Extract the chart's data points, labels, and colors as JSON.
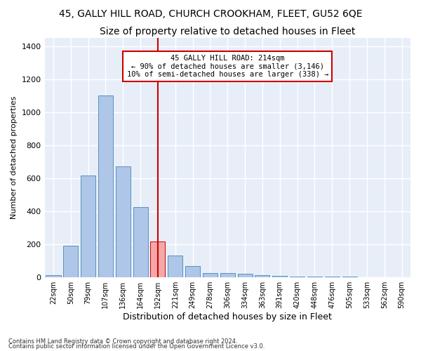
{
  "title1": "45, GALLY HILL ROAD, CHURCH CROOKHAM, FLEET, GU52 6QE",
  "title2": "Size of property relative to detached houses in Fleet",
  "xlabel": "Distribution of detached houses by size in Fleet",
  "ylabel": "Number of detached properties",
  "footnote1": "Contains HM Land Registry data © Crown copyright and database right 2024.",
  "footnote2": "Contains public sector information licensed under the Open Government Licence v3.0.",
  "bar_labels": [
    "22sqm",
    "50sqm",
    "79sqm",
    "107sqm",
    "136sqm",
    "164sqm",
    "192sqm",
    "221sqm",
    "249sqm",
    "278sqm",
    "306sqm",
    "334sqm",
    "363sqm",
    "391sqm",
    "420sqm",
    "448sqm",
    "476sqm",
    "505sqm",
    "533sqm",
    "562sqm",
    "590sqm"
  ],
  "bar_values": [
    10,
    190,
    615,
    1100,
    670,
    425,
    215,
    130,
    65,
    25,
    25,
    18,
    11,
    6,
    3,
    2,
    1,
    1,
    0,
    0,
    0
  ],
  "bar_color": "#aec6e8",
  "bar_edge_color": "#5a8fc2",
  "highlight_bar_index": 6,
  "highlight_bar_color": "#f4a8a8",
  "highlight_bar_edge_color": "#cc0000",
  "vline_x": 6,
  "vline_color": "#cc0000",
  "annotation_line1": "45 GALLY HILL ROAD: 214sqm",
  "annotation_line2": "← 90% of detached houses are smaller (3,146)",
  "annotation_line3": "10% of semi-detached houses are larger (338) →",
  "annotation_box_color": "#ffffff",
  "annotation_box_edge_color": "#cc0000",
  "ylim": [
    0,
    1450
  ],
  "yticks": [
    0,
    200,
    400,
    600,
    800,
    1000,
    1200,
    1400
  ],
  "background_color": "#e8eef8",
  "grid_color": "#ffffff",
  "title1_fontsize": 10,
  "title2_fontsize": 10
}
